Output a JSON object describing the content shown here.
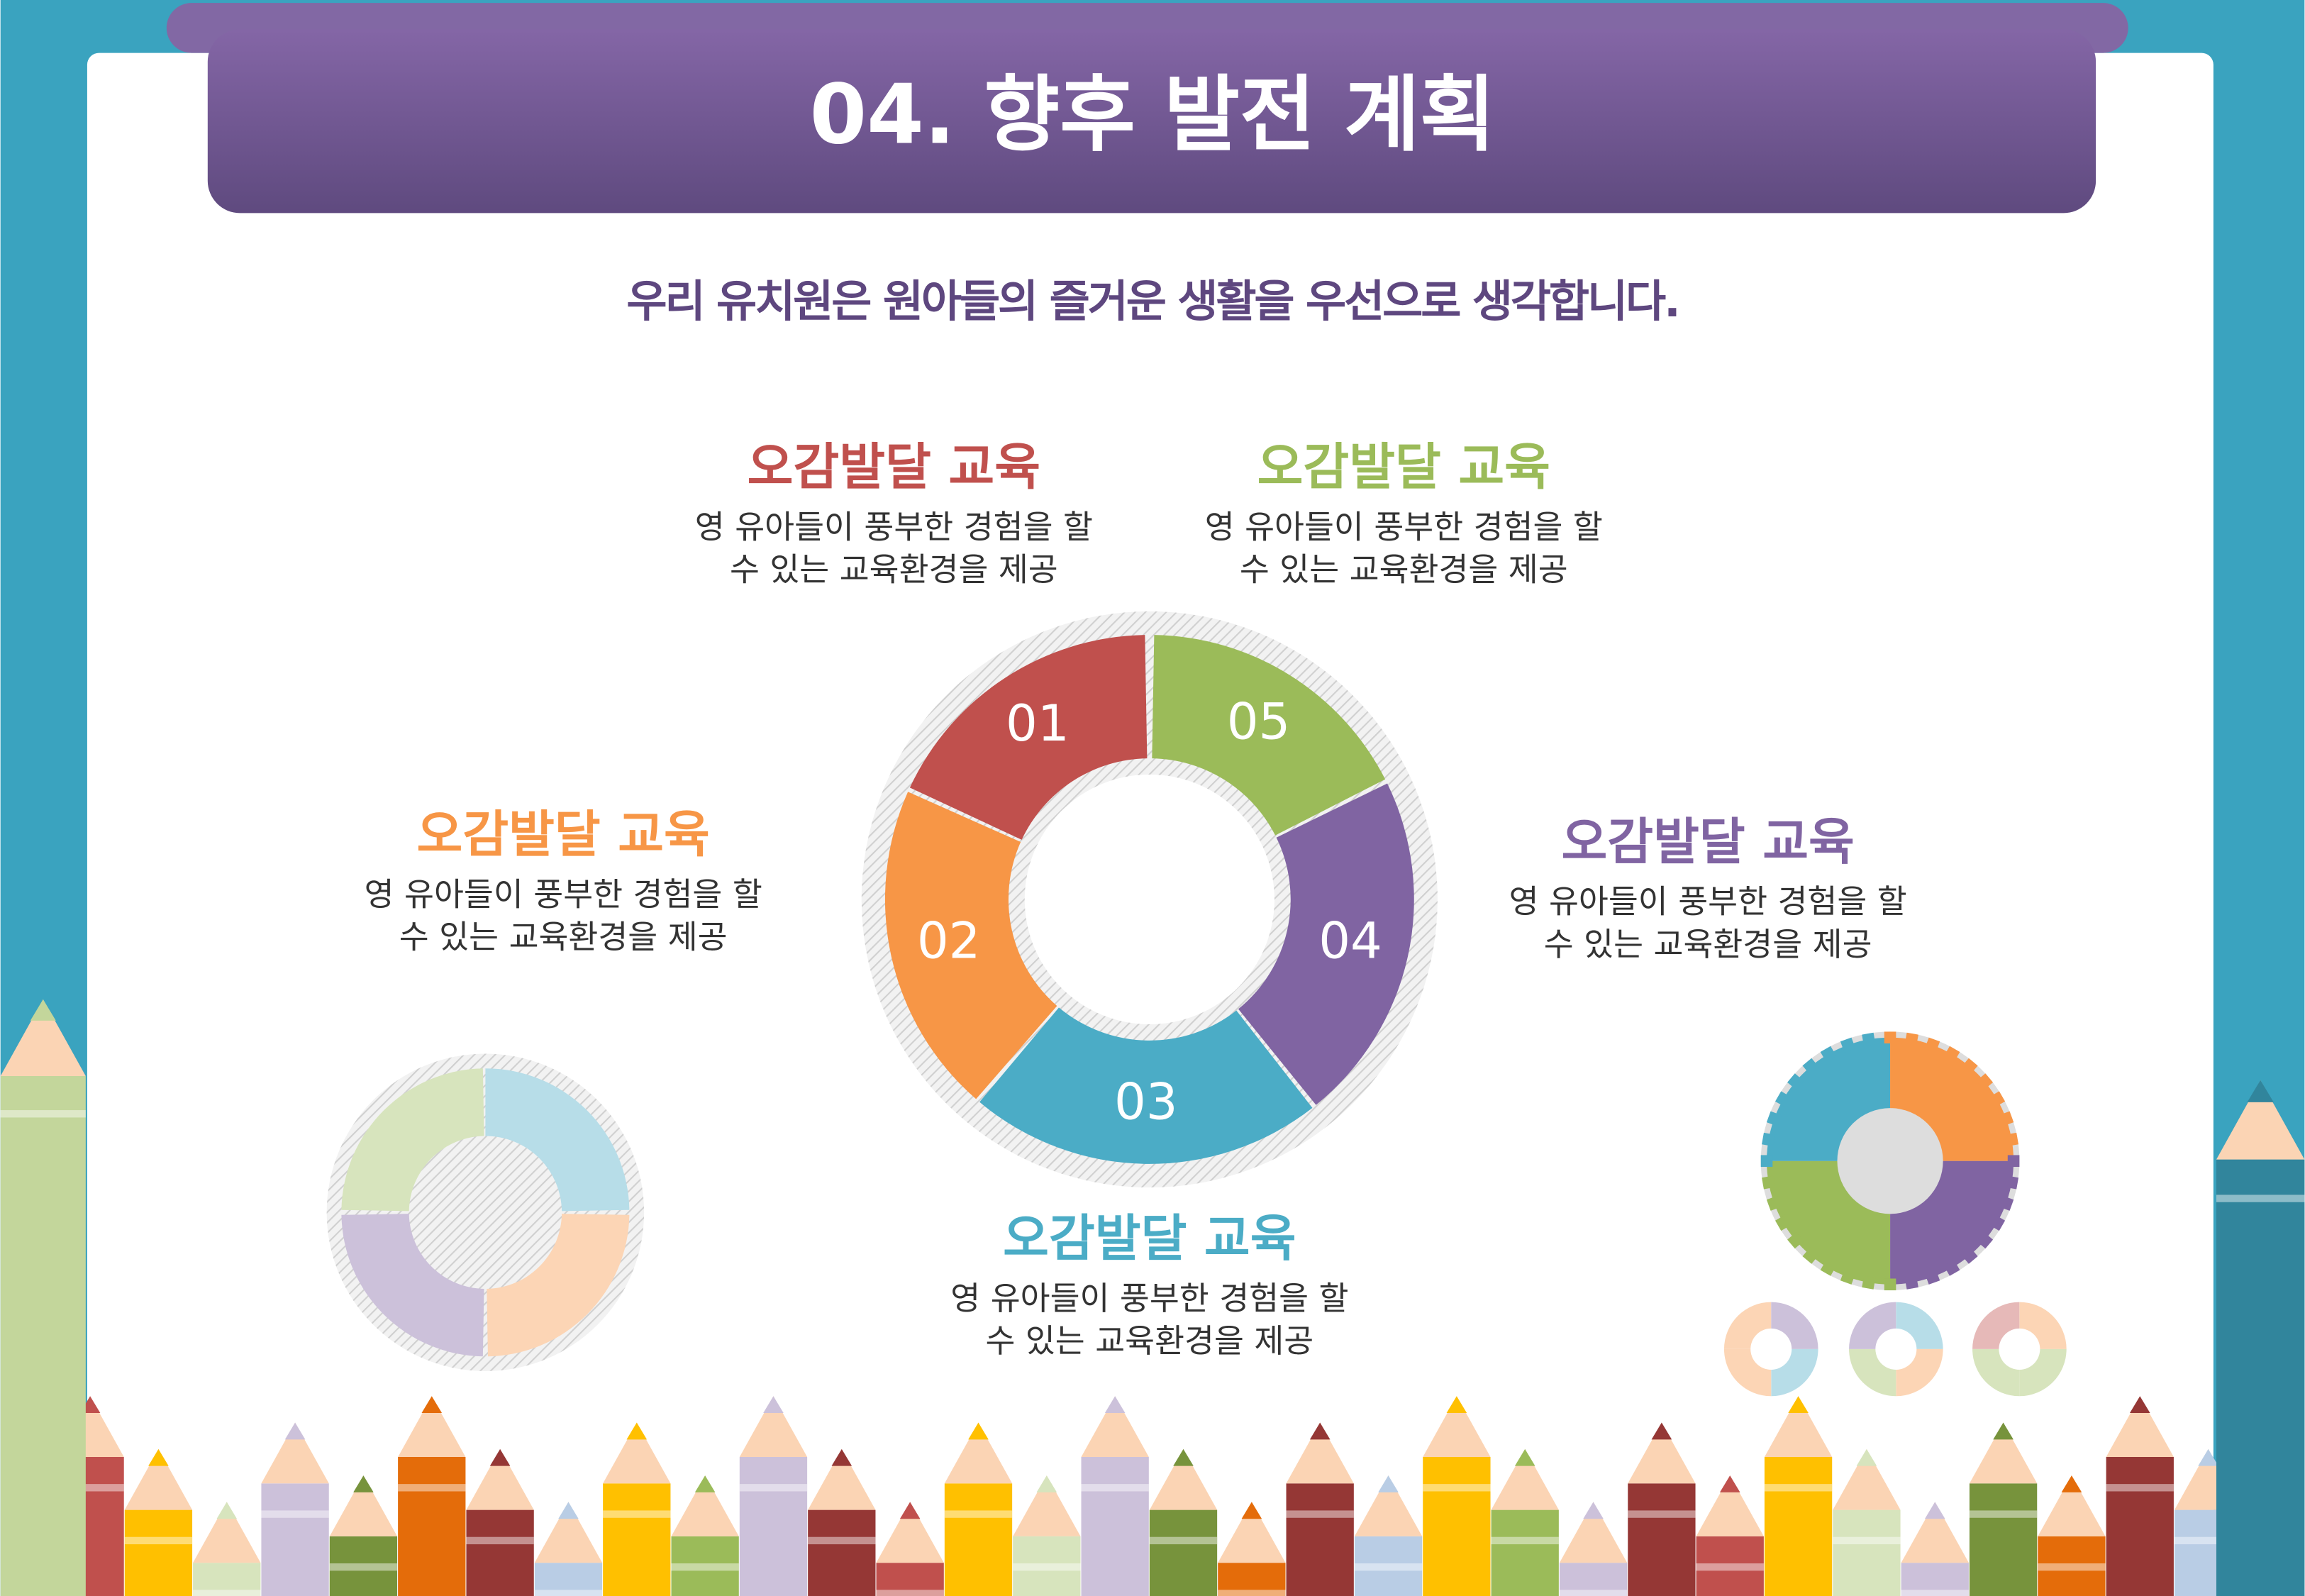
{
  "header": {
    "title": "04. 향후 발전 계획"
  },
  "subtitle": "우리 유치원은  원아들의 즐거운 생활을 우선으로 생각합니다.",
  "items": [
    {
      "number": "01",
      "heading": "오감발달 교육",
      "lines": [
        "영 유아들이 풍부한 경험을 할",
        "수 있는 교육환경을 제공"
      ]
    },
    {
      "number": "02",
      "heading": "오감발달 교육",
      "lines": [
        "영 유아들이 풍부한 경험을 할",
        "수 있는 교육환경을 제공"
      ]
    },
    {
      "number": "03",
      "heading": "오감발달 교육",
      "lines": [
        "영 유아들이 풍부한 경험을 할",
        "수 있는 교육환경을 제공"
      ]
    },
    {
      "number": "04",
      "heading": "오감발달 교육",
      "lines": [
        "영 유아들이 풍부한 경험을 할",
        "수 있는 교육환경을 제공"
      ]
    },
    {
      "number": "05",
      "heading": "오감발달 교육",
      "lines": [
        "영 유아들이 풍부한 경험을 할",
        "수 있는 교육환경을 제공"
      ]
    }
  ]
}
